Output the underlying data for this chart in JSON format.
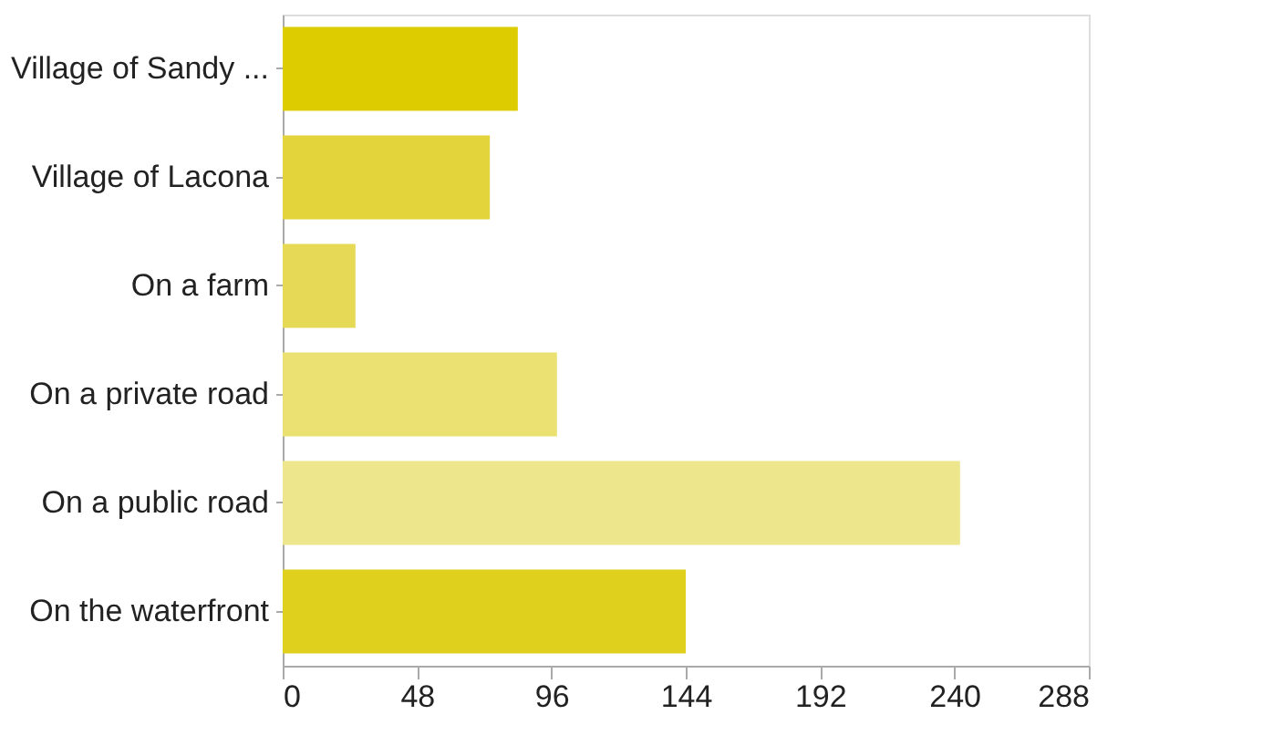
{
  "chart_data": {
    "type": "bar",
    "orientation": "horizontal",
    "categories": [
      "Village of Sandy ...",
      "Village of Lacona",
      "On a farm",
      "On a private road",
      "On a public road",
      "On the waterfront"
    ],
    "values": [
      84,
      74,
      26,
      98,
      242,
      144
    ],
    "colors": [
      "#dccc00",
      "#e2d43a",
      "#e6d956",
      "#ebe172",
      "#ede68c",
      "#dfd01e"
    ],
    "xlim": [
      0,
      288
    ],
    "xticks": [
      0,
      48,
      96,
      144,
      192,
      240,
      288
    ],
    "grid": false,
    "legend": false
  }
}
